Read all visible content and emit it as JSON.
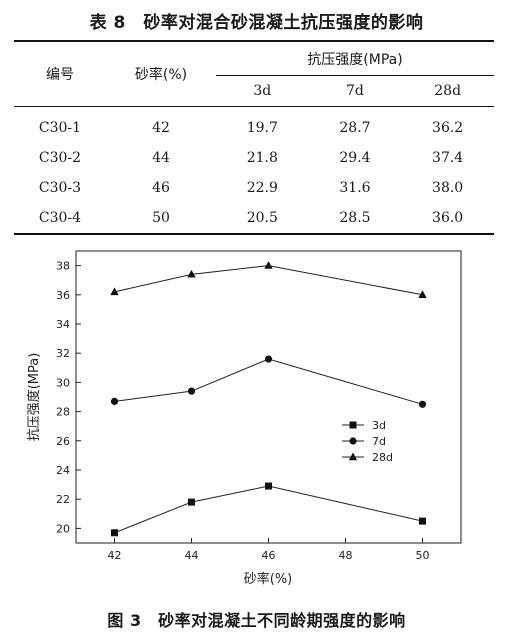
{
  "table": {
    "title": "表 8　砂率对混合砂混凝土抗压强度的影响",
    "headers": {
      "id": "编号",
      "sand_ratio": "砂率(%)",
      "strength": "抗压强度(MPa)",
      "ages": [
        "3d",
        "7d",
        "28d"
      ]
    },
    "rows": [
      {
        "id": "C30-1",
        "ratio": "42",
        "d3": "19.7",
        "d7": "28.7",
        "d28": "36.2"
      },
      {
        "id": "C30-2",
        "ratio": "44",
        "d3": "21.8",
        "d7": "29.4",
        "d28": "37.4"
      },
      {
        "id": "C30-3",
        "ratio": "46",
        "d3": "22.9",
        "d7": "31.6",
        "d28": "38.0"
      },
      {
        "id": "C30-4",
        "ratio": "50",
        "d3": "20.5",
        "d7": "28.5",
        "d28": "36.0"
      }
    ]
  },
  "figure": {
    "caption": "图 3　砂率对混凝土不同龄期强度的影响"
  },
  "chart_data": {
    "type": "line",
    "title": "",
    "xlabel": "砂率(%)",
    "ylabel": "抗压强度(MPa)",
    "xlim": [
      41,
      51
    ],
    "ylim": [
      19,
      39
    ],
    "xticks": [
      42,
      44,
      46,
      48,
      50
    ],
    "yticks": [
      20,
      22,
      24,
      26,
      28,
      30,
      32,
      34,
      36,
      38
    ],
    "grid": false,
    "legend_position": "right-center",
    "x": [
      42,
      44,
      46,
      50
    ],
    "series": [
      {
        "name": "3d",
        "marker": "square",
        "values": [
          19.7,
          21.8,
          22.9,
          20.5
        ]
      },
      {
        "name": "7d",
        "marker": "circle",
        "values": [
          28.7,
          29.4,
          31.6,
          28.5
        ]
      },
      {
        "name": "28d",
        "marker": "triangle",
        "values": [
          36.2,
          37.4,
          38.0,
          36.0
        ]
      }
    ]
  }
}
